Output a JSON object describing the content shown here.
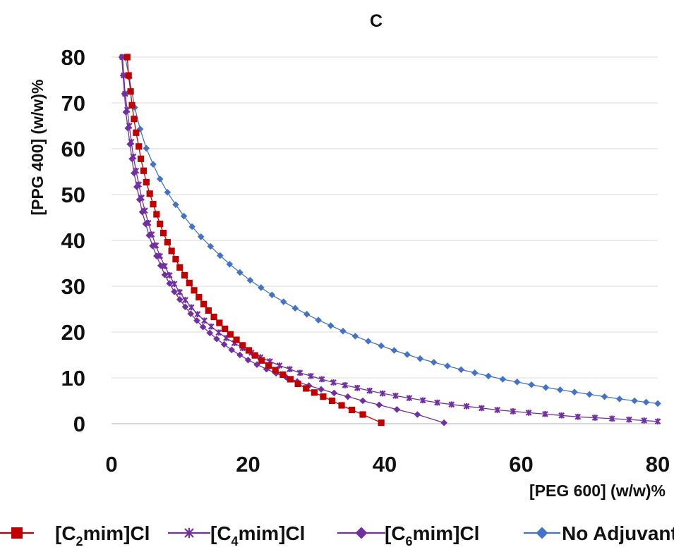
{
  "chart_data": {
    "type": "line",
    "title": "C",
    "xlabel": "[PEG 600] (w/w)%",
    "ylabel": "[PPG 400] (w/w)%",
    "xlim": [
      0,
      80
    ],
    "ylim": [
      0,
      80
    ],
    "xticks": [
      "0",
      "20",
      "40",
      "60",
      "80"
    ],
    "yticks": [
      "0",
      "10",
      "20",
      "30",
      "40",
      "50",
      "60",
      "70",
      "80"
    ],
    "grid": "horizontal",
    "legend_position": "bottom",
    "series": [
      {
        "name": "[C2mim]Cl",
        "legend": {
          "pre": "[C",
          "sub": "2",
          "post": "mim]Cl"
        },
        "color": "#c00000",
        "marker": "square",
        "x": [
          2.3,
          2.5,
          2.8,
          3.0,
          3.3,
          3.6,
          4.0,
          4.3,
          4.7,
          5.1,
          5.6,
          6.1,
          6.6,
          7.1,
          7.6,
          8.2,
          8.8,
          9.4,
          10.0,
          10.7,
          11.4,
          12.1,
          12.8,
          13.5,
          14.2,
          15.0,
          15.8,
          16.6,
          17.4,
          18.3,
          19.2,
          20.1,
          21.0,
          22.0,
          23.0,
          24.0,
          25.1,
          26.2,
          27.3,
          28.5,
          29.7,
          31.0,
          32.3,
          33.7,
          35.2,
          36.8,
          39.5
        ],
        "y": [
          80.0,
          76.0,
          72.5,
          69.5,
          66.5,
          63.5,
          60.5,
          57.8,
          55.2,
          52.7,
          50.2,
          47.9,
          45.7,
          43.6,
          41.6,
          39.6,
          37.7,
          35.9,
          34.1,
          32.4,
          30.7,
          29.1,
          27.6,
          26.1,
          24.7,
          23.3,
          22.0,
          20.7,
          19.5,
          18.3,
          17.1,
          16.0,
          14.9,
          13.8,
          12.7,
          11.7,
          10.7,
          9.7,
          8.7,
          7.7,
          6.8,
          5.9,
          5.0,
          4.0,
          3.0,
          2.0,
          0.2
        ]
      },
      {
        "name": "[C4mim]Cl",
        "legend": {
          "pre": "[C",
          "sub": "4",
          "post": "mim]Cl"
        },
        "color": "#7030a0",
        "marker": "star",
        "x": [
          1.6,
          1.8,
          2.0,
          2.3,
          2.6,
          2.9,
          3.2,
          3.6,
          4.0,
          4.4,
          4.9,
          5.4,
          5.9,
          6.5,
          7.1,
          7.8,
          8.5,
          9.2,
          10.0,
          10.8,
          11.7,
          12.6,
          13.6,
          14.6,
          15.7,
          16.8,
          18.0,
          19.2,
          20.5,
          21.8,
          23.2,
          24.6,
          26.1,
          27.6,
          29.2,
          30.8,
          32.5,
          34.2,
          36.0,
          37.8,
          39.7,
          41.6,
          43.6,
          45.6,
          47.7,
          49.8,
          52.0,
          54.2,
          56.5,
          58.8,
          61.1,
          63.5,
          65.9,
          68.3,
          70.8,
          73.3,
          75.8,
          78.0,
          80.0
        ],
        "y": [
          80.0,
          76.0,
          72.0,
          68.5,
          65.0,
          61.5,
          58.3,
          55.2,
          52.2,
          49.3,
          46.5,
          43.8,
          41.3,
          38.9,
          36.6,
          34.4,
          32.4,
          30.5,
          28.7,
          27.0,
          25.4,
          23.9,
          22.5,
          21.2,
          19.9,
          18.7,
          17.6,
          16.5,
          15.5,
          14.5,
          13.6,
          12.7,
          11.9,
          11.1,
          10.4,
          9.7,
          9.0,
          8.4,
          7.8,
          7.2,
          6.6,
          6.1,
          5.6,
          5.1,
          4.6,
          4.2,
          3.8,
          3.4,
          3.0,
          2.7,
          2.4,
          2.1,
          1.8,
          1.5,
          1.3,
          1.1,
          0.9,
          0.7,
          0.5
        ]
      },
      {
        "name": "[C6mim]Cl",
        "legend": {
          "pre": "[C",
          "sub": "6",
          "post": "mim]Cl"
        },
        "color": "#7030a0",
        "marker": "diamond",
        "x": [
          1.5,
          1.7,
          1.9,
          2.1,
          2.4,
          2.7,
          3.0,
          3.3,
          3.7,
          4.1,
          4.5,
          5.0,
          5.5,
          6.0,
          6.6,
          7.2,
          7.8,
          8.5,
          9.2,
          10.0,
          10.8,
          11.6,
          12.5,
          13.4,
          14.4,
          15.4,
          16.5,
          17.6,
          18.8,
          20.0,
          21.3,
          22.7,
          24.1,
          25.6,
          27.2,
          28.9,
          30.7,
          32.6,
          34.6,
          36.8,
          39.2,
          41.8,
          44.8,
          48.7
        ],
        "y": [
          80.0,
          76.0,
          72.0,
          68.0,
          64.5,
          61.0,
          57.8,
          54.7,
          51.7,
          48.9,
          46.2,
          43.6,
          41.1,
          38.8,
          36.6,
          34.5,
          32.5,
          30.6,
          28.8,
          27.1,
          25.5,
          24.0,
          22.5,
          21.1,
          19.8,
          18.5,
          17.3,
          16.1,
          15.0,
          13.9,
          12.9,
          11.9,
          11.0,
          10.1,
          9.2,
          8.3,
          7.5,
          6.7,
          5.9,
          5.0,
          4.1,
          3.1,
          2.0,
          0.2
        ]
      },
      {
        "name": "No Adjuvant",
        "legend": {
          "pre": "No Adjuvant",
          "sub": "",
          "post": ""
        },
        "color": "#4472c4",
        "marker": "diamond",
        "x": [
          2.0,
          2.6,
          3.4,
          4.2,
          5.1,
          6.1,
          7.1,
          8.2,
          9.4,
          10.6,
          11.8,
          13.1,
          14.5,
          15.9,
          17.3,
          18.8,
          20.3,
          21.9,
          23.5,
          25.2,
          26.9,
          28.6,
          30.3,
          32.1,
          33.9,
          35.7,
          37.6,
          39.5,
          41.4,
          43.3,
          45.2,
          47.2,
          49.2,
          51.2,
          53.2,
          55.2,
          57.3,
          59.4,
          61.5,
          63.6,
          65.7,
          67.8,
          70.0,
          72.2,
          74.4,
          76.6,
          78.3,
          80.0
        ],
        "y": [
          80.0,
          75.5,
          69.0,
          64.3,
          60.1,
          56.6,
          53.4,
          50.5,
          47.8,
          45.3,
          43.0,
          40.8,
          38.7,
          36.7,
          34.8,
          33.0,
          31.3,
          29.7,
          28.1,
          26.6,
          25.2,
          23.9,
          22.6,
          21.4,
          20.2,
          19.1,
          18.0,
          17.0,
          16.0,
          15.1,
          14.2,
          13.4,
          12.6,
          11.8,
          11.1,
          10.4,
          9.7,
          9.1,
          8.5,
          7.9,
          7.4,
          6.9,
          6.4,
          5.9,
          5.4,
          5.0,
          4.7,
          4.4
        ]
      }
    ]
  }
}
